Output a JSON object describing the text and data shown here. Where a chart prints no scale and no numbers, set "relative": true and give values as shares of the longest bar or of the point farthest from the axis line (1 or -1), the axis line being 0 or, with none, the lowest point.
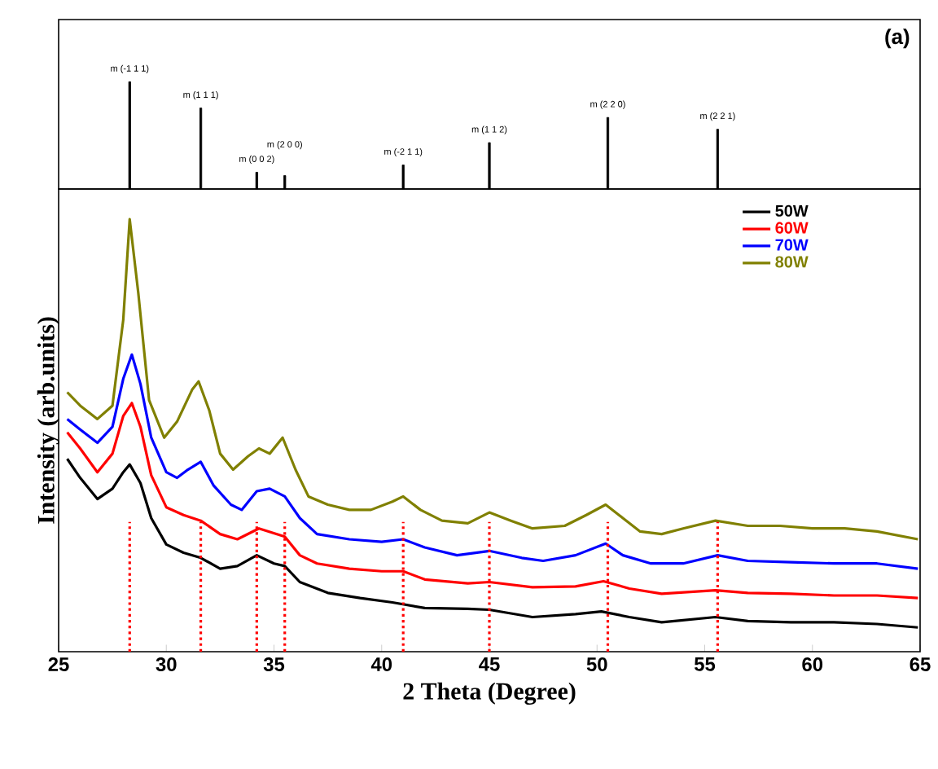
{
  "chart_data": [
    {
      "type": "bar",
      "relative": true,
      "color": "#000000",
      "xlim": [
        25,
        65
      ],
      "tick_labels": false,
      "x": [
        28.3,
        31.6,
        34.2,
        35.5,
        41.0,
        45.0,
        50.5,
        55.6
      ],
      "values": [
        1,
        0.755,
        0.156,
        0.125,
        0.224,
        0.432,
        0.667,
        0.557
      ],
      "annotations": [
        {
          "text": "m (-1 1 1)",
          "x": 28.3,
          "y": 1
        },
        {
          "text": "m (1 1 1)",
          "x": 31.6,
          "y": 0.755
        },
        {
          "text": "m (0 0 2)",
          "x": 34.2,
          "y": 0.156
        },
        {
          "text": "m (2 0 0)",
          "x": 35.5,
          "y": 0.125
        },
        {
          "text": "m (-2 1 1)",
          "x": 41.0,
          "y": 0.224
        },
        {
          "text": "m (1 1 2)",
          "x": 45.0,
          "y": 0.432
        },
        {
          "text": "m (2 2 0)",
          "x": 50.5,
          "y": 0.667
        },
        {
          "text": "m (2 2 1)",
          "x": 55.6,
          "y": 0.557
        },
        "(a)"
      ]
    },
    {
      "type": "line",
      "relative": true,
      "xlim": [
        25,
        65
      ],
      "xticks": [
        25,
        30,
        35,
        40,
        45,
        50,
        55,
        60,
        65
      ],
      "tick_labels": "x",
      "xlabel": "2 Theta  (Degree)",
      "ylabel": "Intensity (arb.units)",
      "legend": "top right",
      "series": [
        {
          "name": "50W",
          "color": "#000000",
          "x": [
            25.4,
            26,
            26.8,
            27.5,
            28.0,
            28.3,
            28.8,
            29.3,
            30.0,
            30.8,
            31.6,
            32.5,
            33.3,
            34.2,
            35.0,
            35.5,
            36.2,
            37.5,
            39.0,
            40.5,
            42.0,
            44.0,
            45.0,
            47.0,
            49.0,
            50.2,
            51.5,
            53.0,
            55.5,
            57.0,
            59.0,
            61.0,
            63.0,
            64.9
          ],
          "values": [
            0.446,
            0.402,
            0.353,
            0.377,
            0.415,
            0.433,
            0.39,
            0.309,
            0.248,
            0.229,
            0.217,
            0.192,
            0.198,
            0.223,
            0.204,
            0.198,
            0.161,
            0.136,
            0.124,
            0.114,
            0.101,
            0.099,
            0.097,
            0.08,
            0.087,
            0.093,
            0.08,
            0.068,
            0.08,
            0.071,
            0.068,
            0.068,
            0.064,
            0.056
          ]
        },
        {
          "name": "60W",
          "color": "#ff0000",
          "x": [
            25.4,
            26,
            26.8,
            27.5,
            28.0,
            28.4,
            28.8,
            29.3,
            30.0,
            30.8,
            31.6,
            32.5,
            33.3,
            34.3,
            35.5,
            36.2,
            37.0,
            38.5,
            40.0,
            41.0,
            42.0,
            44.0,
            45.0,
            47.0,
            49.0,
            50.3,
            51.5,
            53.0,
            55.5,
            57.0,
            59.0,
            61.0,
            63.0,
            64.9
          ],
          "values": [
            0.507,
            0.47,
            0.415,
            0.458,
            0.545,
            0.575,
            0.52,
            0.408,
            0.334,
            0.316,
            0.303,
            0.272,
            0.26,
            0.285,
            0.266,
            0.223,
            0.204,
            0.192,
            0.186,
            0.186,
            0.167,
            0.158,
            0.161,
            0.149,
            0.151,
            0.163,
            0.146,
            0.134,
            0.142,
            0.136,
            0.134,
            0.13,
            0.13,
            0.124
          ]
        },
        {
          "name": "70W",
          "color": "#0000ff",
          "x": [
            25.4,
            26,
            26.8,
            27.5,
            28.0,
            28.4,
            28.8,
            29.3,
            30.0,
            30.5,
            31.0,
            31.6,
            32.2,
            33.0,
            33.5,
            34.2,
            34.8,
            35.5,
            36.2,
            37.0,
            38.5,
            40.0,
            41.0,
            42.0,
            43.5,
            45.0,
            46.5,
            47.5,
            49.0,
            50.4,
            51.2,
            52.5,
            54.0,
            55.6,
            57.0,
            59.0,
            61.0,
            63.0,
            64.9
          ],
          "values": [
            0.538,
            0.514,
            0.483,
            0.52,
            0.631,
            0.687,
            0.619,
            0.495,
            0.415,
            0.402,
            0.421,
            0.439,
            0.384,
            0.34,
            0.328,
            0.371,
            0.377,
            0.359,
            0.309,
            0.272,
            0.26,
            0.254,
            0.26,
            0.241,
            0.223,
            0.233,
            0.217,
            0.21,
            0.223,
            0.25,
            0.223,
            0.204,
            0.204,
            0.223,
            0.21,
            0.207,
            0.204,
            0.204,
            0.192
          ]
        },
        {
          "name": "80W",
          "color": "#808000",
          "x": [
            25.4,
            26,
            26.8,
            27.5,
            28.0,
            28.3,
            28.7,
            29.2,
            29.9,
            30.5,
            31.2,
            31.5,
            32.0,
            32.5,
            33.1,
            33.8,
            34.3,
            34.8,
            35.4,
            36.0,
            36.6,
            37.5,
            38.5,
            39.5,
            40.5,
            41.0,
            41.8,
            42.8,
            44.0,
            45.0,
            46.0,
            47.0,
            48.5,
            49.5,
            50.4,
            51.2,
            52.0,
            53.0,
            54.0,
            55.5,
            57.0,
            58.5,
            60.0,
            61.5,
            63.0,
            64.9
          ],
          "values": [
            0.6,
            0.569,
            0.538,
            0.569,
            0.767,
            1,
            0.829,
            0.582,
            0.495,
            0.532,
            0.606,
            0.625,
            0.557,
            0.458,
            0.421,
            0.452,
            0.47,
            0.458,
            0.495,
            0.421,
            0.359,
            0.34,
            0.328,
            0.328,
            0.347,
            0.359,
            0.328,
            0.303,
            0.297,
            0.322,
            0.303,
            0.285,
            0.291,
            0.316,
            0.34,
            0.309,
            0.278,
            0.272,
            0.285,
            0.303,
            0.291,
            0.291,
            0.285,
            0.285,
            0.278,
            0.26
          ]
        }
      ],
      "ref_lines": [
        {
          "axis": "x",
          "value": 28.3,
          "color": "#ff0000",
          "line_style": "dotted"
        },
        {
          "axis": "x",
          "value": 31.6,
          "color": "#ff0000",
          "line_style": "dotted"
        },
        {
          "axis": "x",
          "value": 34.2,
          "color": "#ff0000",
          "line_style": "dotted"
        },
        {
          "axis": "x",
          "value": 35.5,
          "color": "#ff0000",
          "line_style": "dotted"
        },
        {
          "axis": "x",
          "value": 41.0,
          "color": "#ff0000",
          "line_style": "dotted"
        },
        {
          "axis": "x",
          "value": 45.0,
          "color": "#ff0000",
          "line_style": "dotted"
        },
        {
          "axis": "x",
          "value": 50.5,
          "color": "#ff0000",
          "line_style": "dotted"
        },
        {
          "axis": "x",
          "value": 55.6,
          "color": "#ff0000",
          "line_style": "dotted"
        }
      ]
    }
  ]
}
